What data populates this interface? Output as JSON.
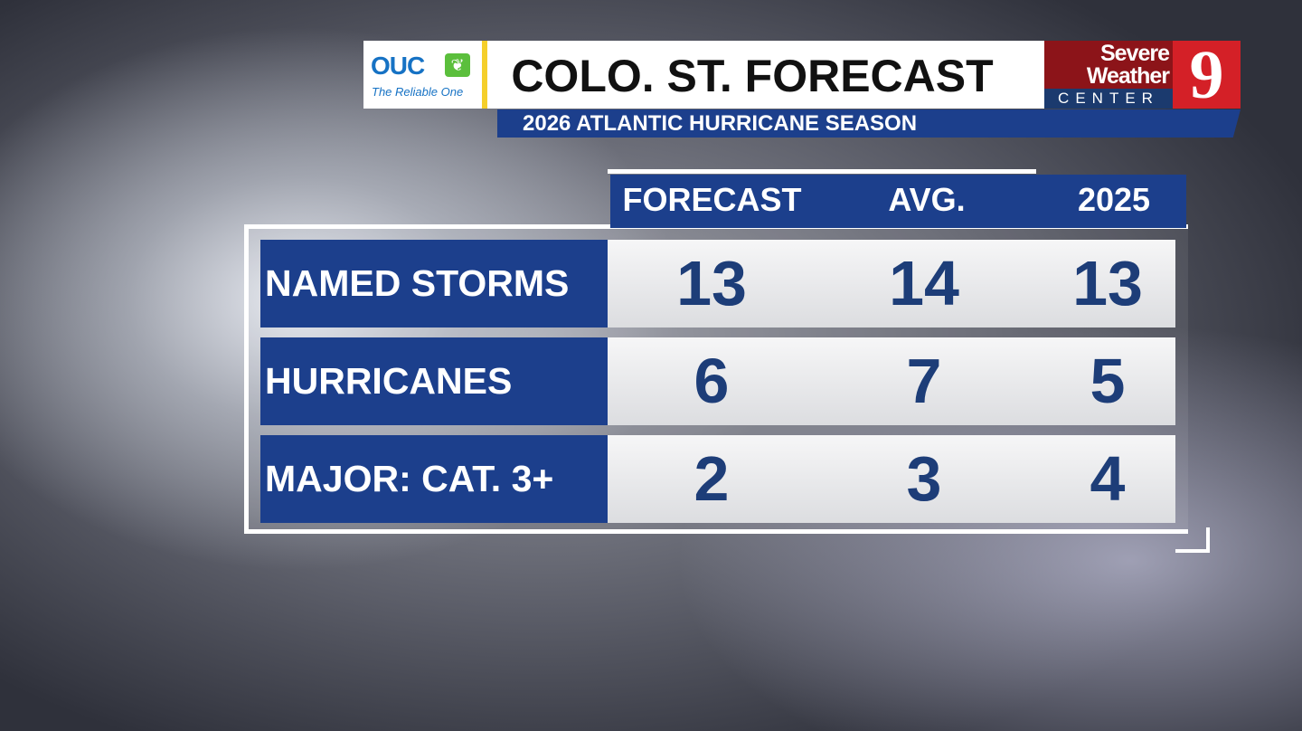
{
  "header": {
    "sponsor": {
      "name": "OUC",
      "tagline": "The Reliable One"
    },
    "title": "COLO. ST. FORECAST",
    "station_logo": {
      "line1": "Severe",
      "line2": "Weather",
      "line3": "CENTER",
      "channel": "9"
    },
    "subtitle": "2026 ATLANTIC HURRICANE SEASON"
  },
  "table": {
    "columns": [
      "FORECAST",
      "AVG.",
      "2025"
    ],
    "rows": [
      {
        "label": "NAMED STORMS",
        "values": [
          "13",
          "14",
          "13"
        ]
      },
      {
        "label": "HURRICANES",
        "values": [
          "6",
          "7",
          "5"
        ]
      },
      {
        "label": "MAJOR: CAT. 3+",
        "values": [
          "2",
          "3",
          "4"
        ]
      }
    ]
  },
  "colors": {
    "table_blue": "#1c3f8c",
    "value_text": "#1d3d78",
    "station_red": "#d42027",
    "sponsor_blue": "#1672c4"
  }
}
